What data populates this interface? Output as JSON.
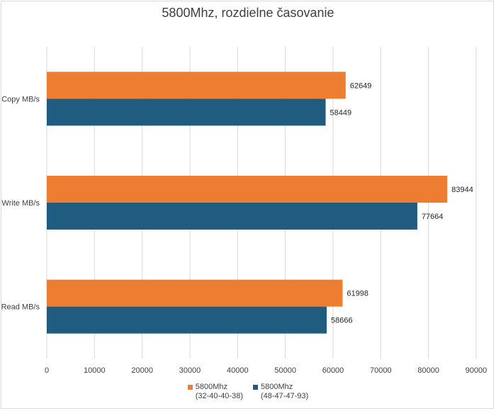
{
  "chart_data": {
    "type": "bar",
    "orientation": "horizontal",
    "title": "5800Mhz, rozdielne časovanie",
    "categories": [
      "Copy MB/s",
      "Write MB/s",
      "Read MB/s"
    ],
    "series": [
      {
        "name": "5800Mhz (32-40-40-38)",
        "legend_line1": "5800Mhz",
        "legend_line2": "(32-40-40-38)",
        "color": "#ED7D31",
        "values": [
          62649,
          83944,
          61998
        ]
      },
      {
        "name": "5800Mhz (48-47-47-93)",
        "legend_line1": "5800Mhz",
        "legend_line2": "(48-47-47-93)",
        "color": "#1F5C80",
        "values": [
          58449,
          77664,
          58666
        ]
      }
    ],
    "xlim": [
      0,
      90000
    ],
    "xticks": [
      "0",
      "10000",
      "20000",
      "30000",
      "40000",
      "50000",
      "60000",
      "70000",
      "80000",
      "90000"
    ],
    "grid": true,
    "legend_position": "bottom",
    "data_labels": true
  }
}
